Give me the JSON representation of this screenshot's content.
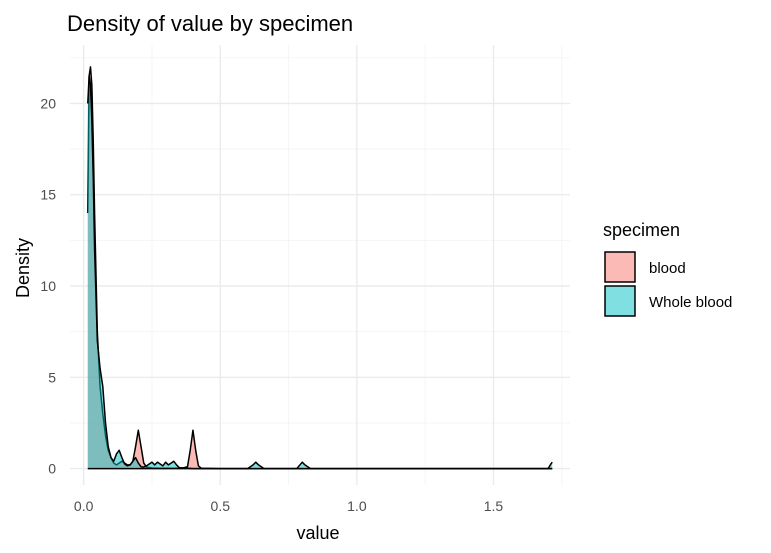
{
  "chart_data": {
    "type": "area",
    "title": "Density of value by specimen",
    "xlabel": "value",
    "ylabel": "Density",
    "xlim": [
      -0.05,
      1.78
    ],
    "ylim": [
      -0.9,
      23.2
    ],
    "x_ticks": [
      0.0,
      0.5,
      1.0,
      1.5
    ],
    "x_tick_labels": [
      "0.0",
      "0.5",
      "1.0",
      "1.5"
    ],
    "y_ticks": [
      0,
      5,
      10,
      15,
      20
    ],
    "y_tick_labels": [
      "0",
      "5",
      "10",
      "15",
      "20"
    ],
    "grid": true,
    "legend": {
      "title": "specimen",
      "placement": "right"
    },
    "series": [
      {
        "name": "blood",
        "color": "#F8766D",
        "x": [
          0.015,
          0.02,
          0.025,
          0.03,
          0.035,
          0.04,
          0.05,
          0.06,
          0.07,
          0.08,
          0.09,
          0.1,
          0.11,
          0.12,
          0.13,
          0.14,
          0.15,
          0.16,
          0.17,
          0.18,
          0.19,
          0.2,
          0.21,
          0.22,
          0.23,
          0.25,
          0.28,
          0.3,
          0.33,
          0.36,
          0.38,
          0.39,
          0.4,
          0.41,
          0.42,
          0.43,
          0.5,
          0.6,
          0.7,
          0.8,
          0.9,
          1.0,
          1.2,
          1.4,
          1.6,
          1.7,
          1.715
        ],
        "y": [
          14.0,
          21.5,
          22.0,
          21.0,
          18.0,
          14.0,
          7.5,
          4.5,
          3.0,
          1.8,
          1.0,
          0.6,
          0.3,
          0.2,
          0.3,
          0.4,
          0.3,
          0.2,
          0.2,
          0.4,
          1.2,
          2.1,
          1.2,
          0.3,
          0.08,
          0.03,
          0.02,
          0.02,
          0.02,
          0.02,
          0.1,
          1.0,
          2.1,
          1.0,
          0.15,
          0.02,
          0.0,
          0.0,
          0.0,
          0.0,
          0.0,
          0.0,
          0.0,
          0.0,
          0.0,
          0.0,
          0.0
        ]
      },
      {
        "name": "Whole blood",
        "color": "#00BFC4",
        "x": [
          0.015,
          0.02,
          0.025,
          0.03,
          0.035,
          0.04,
          0.05,
          0.06,
          0.07,
          0.08,
          0.09,
          0.1,
          0.11,
          0.12,
          0.13,
          0.14,
          0.15,
          0.16,
          0.17,
          0.18,
          0.19,
          0.2,
          0.21,
          0.22,
          0.23,
          0.25,
          0.26,
          0.27,
          0.28,
          0.29,
          0.3,
          0.31,
          0.32,
          0.33,
          0.34,
          0.35,
          0.4,
          0.5,
          0.6,
          0.62,
          0.63,
          0.64,
          0.66,
          0.78,
          0.8,
          0.81,
          0.83,
          1.0,
          1.2,
          1.4,
          1.6,
          1.7,
          1.71,
          1.715
        ],
        "y": [
          20.0,
          21.5,
          21.0,
          19.0,
          16.0,
          12.0,
          7.0,
          5.5,
          4.5,
          2.5,
          1.2,
          0.6,
          0.4,
          0.8,
          1.0,
          0.6,
          0.25,
          0.15,
          0.2,
          0.4,
          0.6,
          0.3,
          0.1,
          0.08,
          0.15,
          0.35,
          0.2,
          0.35,
          0.25,
          0.15,
          0.35,
          0.2,
          0.3,
          0.4,
          0.2,
          0.05,
          0.0,
          0.0,
          0.0,
          0.2,
          0.35,
          0.2,
          0.0,
          0.0,
          0.35,
          0.2,
          0.0,
          0.0,
          0.0,
          0.0,
          0.0,
          0.0,
          0.25,
          0.35
        ]
      }
    ]
  }
}
